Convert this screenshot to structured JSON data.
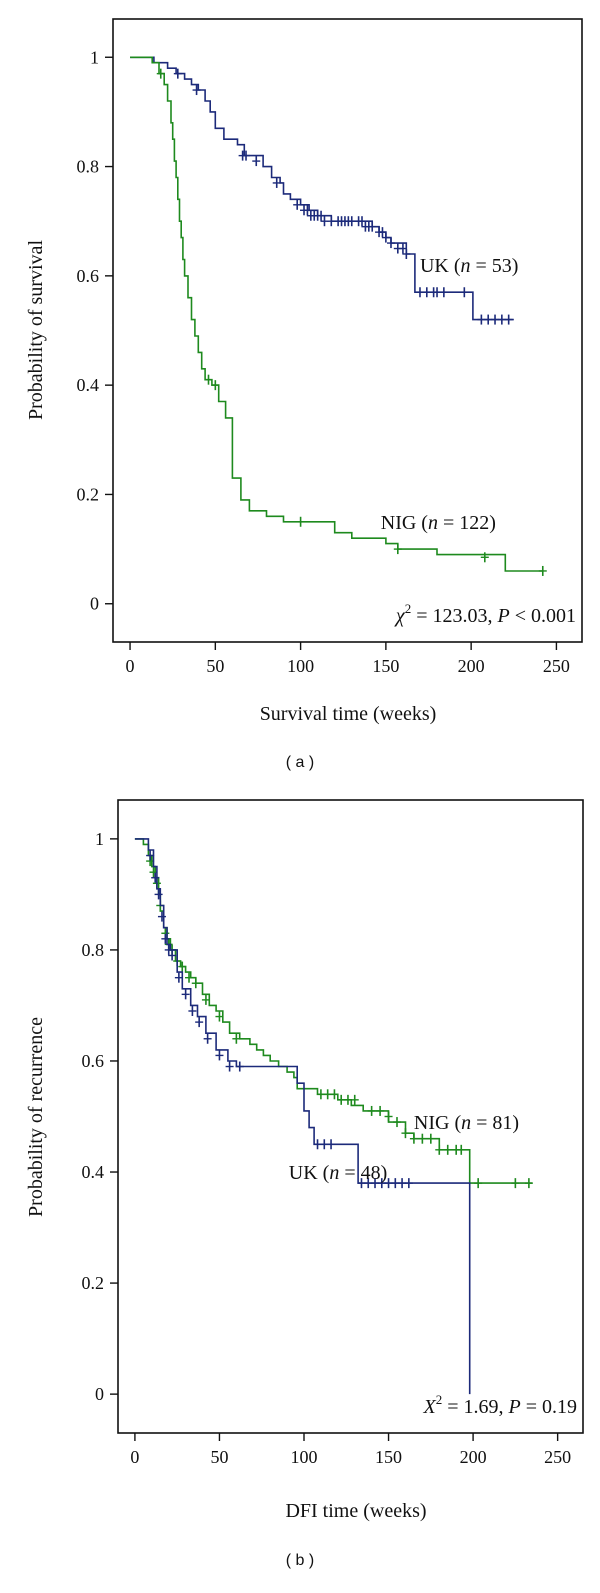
{
  "chart_data": [
    {
      "type": "line",
      "panel_label": "( a )",
      "xlabel": "Survival time (weeks)",
      "ylabel": "Probability of survival",
      "xlim": [
        -10,
        265
      ],
      "ylim": [
        -0.07,
        1.07
      ],
      "xticks": [
        0,
        50,
        100,
        150,
        200,
        250
      ],
      "yticks": [
        0,
        0.2,
        0.4,
        0.6,
        0.8,
        1
      ],
      "xtick_labels": [
        "0",
        "50",
        "100",
        "150",
        "200",
        "250"
      ],
      "ytick_labels": [
        "0",
        "0.2",
        "0.4",
        "0.6",
        "0.8",
        "1"
      ],
      "grid": false,
      "annotation": {
        "prefix": "χ",
        "sup": "2",
        "mid": " = 123.03, ",
        "pvar": "P",
        "suffix": " < 0.001"
      },
      "series": [
        {
          "label_prefix": "UK (",
          "label_var": "n",
          "label_suffix": " = 53)",
          "color": "#1c2a7a",
          "label_pos": [
            170,
            0.62
          ],
          "steps": [
            [
              0,
              1
            ],
            [
              14,
              0.99
            ],
            [
              22,
              0.98
            ],
            [
              27,
              0.97
            ],
            [
              32,
              0.96
            ],
            [
              36,
              0.95
            ],
            [
              40,
              0.94
            ],
            [
              44,
              0.92
            ],
            [
              47,
              0.9
            ],
            [
              50,
              0.87
            ],
            [
              55,
              0.85
            ],
            [
              63,
              0.84
            ],
            [
              67,
              0.82
            ],
            [
              78,
              0.8
            ],
            [
              83,
              0.78
            ],
            [
              88,
              0.77
            ],
            [
              90,
              0.75
            ],
            [
              94,
              0.74
            ],
            [
              100,
              0.73
            ],
            [
              105,
              0.72
            ],
            [
              110,
              0.71
            ],
            [
              118,
              0.7
            ],
            [
              142,
              0.69
            ],
            [
              146,
              0.68
            ],
            [
              150,
              0.67
            ],
            [
              153,
              0.66
            ],
            [
              162,
              0.64
            ],
            [
              167,
              0.57
            ],
            [
              184,
              0.57
            ],
            [
              201,
              0.52
            ],
            [
              225,
              0.52
            ]
          ],
          "censored": [
            [
              28,
              0.97
            ],
            [
              39,
              0.94
            ],
            [
              66,
              0.82
            ],
            [
              68,
              0.82
            ],
            [
              74,
              0.81
            ],
            [
              86,
              0.77
            ],
            [
              98,
              0.73
            ],
            [
              102,
              0.72
            ],
            [
              104,
              0.72
            ],
            [
              106,
              0.71
            ],
            [
              108,
              0.71
            ],
            [
              110,
              0.71
            ],
            [
              112,
              0.71
            ],
            [
              114,
              0.7
            ],
            [
              118,
              0.7
            ],
            [
              122,
              0.7
            ],
            [
              124,
              0.7
            ],
            [
              126,
              0.7
            ],
            [
              128,
              0.7
            ],
            [
              130,
              0.7
            ],
            [
              134,
              0.7
            ],
            [
              136,
              0.7
            ],
            [
              138,
              0.69
            ],
            [
              140,
              0.69
            ],
            [
              142,
              0.69
            ],
            [
              146,
              0.68
            ],
            [
              148,
              0.68
            ],
            [
              150,
              0.67
            ],
            [
              153,
              0.66
            ],
            [
              157,
              0.65
            ],
            [
              160,
              0.65
            ],
            [
              162,
              0.64
            ],
            [
              170,
              0.57
            ],
            [
              174,
              0.57
            ],
            [
              178,
              0.57
            ],
            [
              180,
              0.57
            ],
            [
              184,
              0.57
            ],
            [
              196,
              0.57
            ],
            [
              206,
              0.52
            ],
            [
              210,
              0.52
            ],
            [
              214,
              0.52
            ],
            [
              218,
              0.52
            ],
            [
              222,
              0.52
            ]
          ]
        },
        {
          "label_prefix": "NIG (",
          "label_var": "n",
          "label_suffix": " = 122)",
          "color": "#1e8a1e",
          "label_pos": [
            147,
            0.15
          ],
          "steps": [
            [
              0,
              1
            ],
            [
              13,
              0.99
            ],
            [
              17,
              0.97
            ],
            [
              20,
              0.95
            ],
            [
              22,
              0.92
            ],
            [
              24,
              0.88
            ],
            [
              25,
              0.85
            ],
            [
              26,
              0.81
            ],
            [
              27,
              0.78
            ],
            [
              28,
              0.74
            ],
            [
              29,
              0.7
            ],
            [
              30,
              0.67
            ],
            [
              31,
              0.63
            ],
            [
              32,
              0.6
            ],
            [
              34,
              0.56
            ],
            [
              36,
              0.52
            ],
            [
              38,
              0.49
            ],
            [
              40,
              0.46
            ],
            [
              42,
              0.43
            ],
            [
              44,
              0.41
            ],
            [
              48,
              0.4
            ],
            [
              52,
              0.37
            ],
            [
              56,
              0.34
            ],
            [
              60,
              0.23
            ],
            [
              65,
              0.19
            ],
            [
              70,
              0.17
            ],
            [
              80,
              0.16
            ],
            [
              90,
              0.15
            ],
            [
              96,
              0.15
            ],
            [
              120,
              0.13
            ],
            [
              130,
              0.12
            ],
            [
              150,
              0.11
            ],
            [
              157,
              0.1
            ],
            [
              180,
              0.09
            ],
            [
              220,
              0.06
            ],
            [
              242,
              0.06
            ]
          ],
          "censored": [
            [
              18,
              0.97
            ],
            [
              46,
              0.41
            ],
            [
              50,
              0.4
            ],
            [
              100,
              0.15
            ],
            [
              157,
              0.1
            ],
            [
              208,
              0.085
            ],
            [
              242,
              0.06
            ]
          ]
        }
      ]
    },
    {
      "type": "line",
      "panel_label": "( b )",
      "xlabel": "DFI time (weeks)",
      "ylabel": "Probability of recurrence",
      "xlim": [
        -10,
        265
      ],
      "ylim": [
        -0.07,
        1.07
      ],
      "xticks": [
        0,
        50,
        100,
        150,
        200,
        250
      ],
      "yticks": [
        0,
        0.2,
        0.4,
        0.6,
        0.8,
        1
      ],
      "xtick_labels": [
        "0",
        "50",
        "100",
        "150",
        "200",
        "250"
      ],
      "ytick_labels": [
        "0",
        "0.2",
        "0.4",
        "0.6",
        "0.8",
        "1"
      ],
      "grid": false,
      "annotation": {
        "prefix": "X",
        "sup": "2",
        "mid": " = 1.69, ",
        "pvar": "P",
        "suffix": " = 0.19"
      },
      "series": [
        {
          "label_prefix": "NIG (",
          "label_var": "n",
          "label_suffix": " = 81)",
          "color": "#1e8a1e",
          "label_pos": [
            165,
            0.49
          ],
          "steps": [
            [
              0,
              1
            ],
            [
              5,
              0.99
            ],
            [
              8,
              0.97
            ],
            [
              10,
              0.95
            ],
            [
              12,
              0.93
            ],
            [
              14,
              0.9
            ],
            [
              15,
              0.87
            ],
            [
              17,
              0.84
            ],
            [
              19,
              0.82
            ],
            [
              21,
              0.8
            ],
            [
              24,
              0.78
            ],
            [
              27,
              0.77
            ],
            [
              30,
              0.76
            ],
            [
              33,
              0.75
            ],
            [
              36,
              0.74
            ],
            [
              40,
              0.72
            ],
            [
              44,
              0.7
            ],
            [
              48,
              0.69
            ],
            [
              52,
              0.67
            ],
            [
              56,
              0.65
            ],
            [
              62,
              0.64
            ],
            [
              68,
              0.63
            ],
            [
              72,
              0.62
            ],
            [
              76,
              0.61
            ],
            [
              80,
              0.6
            ],
            [
              85,
              0.59
            ],
            [
              90,
              0.58
            ],
            [
              94,
              0.57
            ],
            [
              96,
              0.55
            ],
            [
              108,
              0.54
            ],
            [
              120,
              0.53
            ],
            [
              128,
              0.52
            ],
            [
              135,
              0.51
            ],
            [
              150,
              0.49
            ],
            [
              160,
              0.47
            ],
            [
              165,
              0.46
            ],
            [
              180,
              0.44
            ],
            [
              198,
              0.38
            ],
            [
              235,
              0.38
            ]
          ],
          "censored": [
            [
              9,
              0.96
            ],
            [
              11,
              0.94
            ],
            [
              13,
              0.92
            ],
            [
              15,
              0.88
            ],
            [
              18,
              0.83
            ],
            [
              20,
              0.81
            ],
            [
              22,
              0.8
            ],
            [
              25,
              0.78
            ],
            [
              28,
              0.77
            ],
            [
              32,
              0.75
            ],
            [
              36,
              0.74
            ],
            [
              42,
              0.71
            ],
            [
              50,
              0.68
            ],
            [
              60,
              0.64
            ],
            [
              110,
              0.54
            ],
            [
              114,
              0.54
            ],
            [
              118,
              0.54
            ],
            [
              122,
              0.53
            ],
            [
              126,
              0.53
            ],
            [
              130,
              0.53
            ],
            [
              140,
              0.51
            ],
            [
              145,
              0.51
            ],
            [
              150,
              0.5
            ],
            [
              155,
              0.49
            ],
            [
              160,
              0.47
            ],
            [
              165,
              0.46
            ],
            [
              170,
              0.46
            ],
            [
              175,
              0.46
            ],
            [
              180,
              0.44
            ],
            [
              185,
              0.44
            ],
            [
              190,
              0.44
            ],
            [
              193,
              0.44
            ],
            [
              203,
              0.38
            ],
            [
              225,
              0.38
            ],
            [
              233,
              0.38
            ]
          ]
        },
        {
          "label_prefix": "UK (",
          "label_var": "n",
          "label_suffix": " = 48)",
          "color": "#1c2a7a",
          "label_pos": [
            91,
            0.4
          ],
          "steps": [
            [
              0,
              1
            ],
            [
              8,
              0.98
            ],
            [
              11,
              0.95
            ],
            [
              13,
              0.91
            ],
            [
              15,
              0.88
            ],
            [
              17,
              0.84
            ],
            [
              19,
              0.81
            ],
            [
              21,
              0.8
            ],
            [
              25,
              0.76
            ],
            [
              28,
              0.73
            ],
            [
              33,
              0.7
            ],
            [
              37,
              0.68
            ],
            [
              42,
              0.65
            ],
            [
              48,
              0.62
            ],
            [
              55,
              0.6
            ],
            [
              60,
              0.59
            ],
            [
              96,
              0.56
            ],
            [
              100,
              0.51
            ],
            [
              103,
              0.48
            ],
            [
              106,
              0.45
            ],
            [
              120,
              0.45
            ],
            [
              132,
              0.38
            ],
            [
              198,
              0.38
            ],
            [
              198,
              0
            ]
          ],
          "censored": [
            [
              9,
              0.97
            ],
            [
              12,
              0.93
            ],
            [
              14,
              0.9
            ],
            [
              16,
              0.86
            ],
            [
              18,
              0.82
            ],
            [
              20,
              0.8
            ],
            [
              22,
              0.79
            ],
            [
              26,
              0.75
            ],
            [
              30,
              0.72
            ],
            [
              34,
              0.69
            ],
            [
              38,
              0.67
            ],
            [
              43,
              0.64
            ],
            [
              50,
              0.61
            ],
            [
              56,
              0.59
            ],
            [
              62,
              0.59
            ],
            [
              108,
              0.45
            ],
            [
              112,
              0.45
            ],
            [
              116,
              0.45
            ],
            [
              134,
              0.38
            ],
            [
              138,
              0.38
            ],
            [
              142,
              0.38
            ],
            [
              146,
              0.38
            ],
            [
              150,
              0.38
            ],
            [
              154,
              0.38
            ],
            [
              158,
              0.38
            ],
            [
              162,
              0.38
            ]
          ]
        }
      ]
    }
  ]
}
